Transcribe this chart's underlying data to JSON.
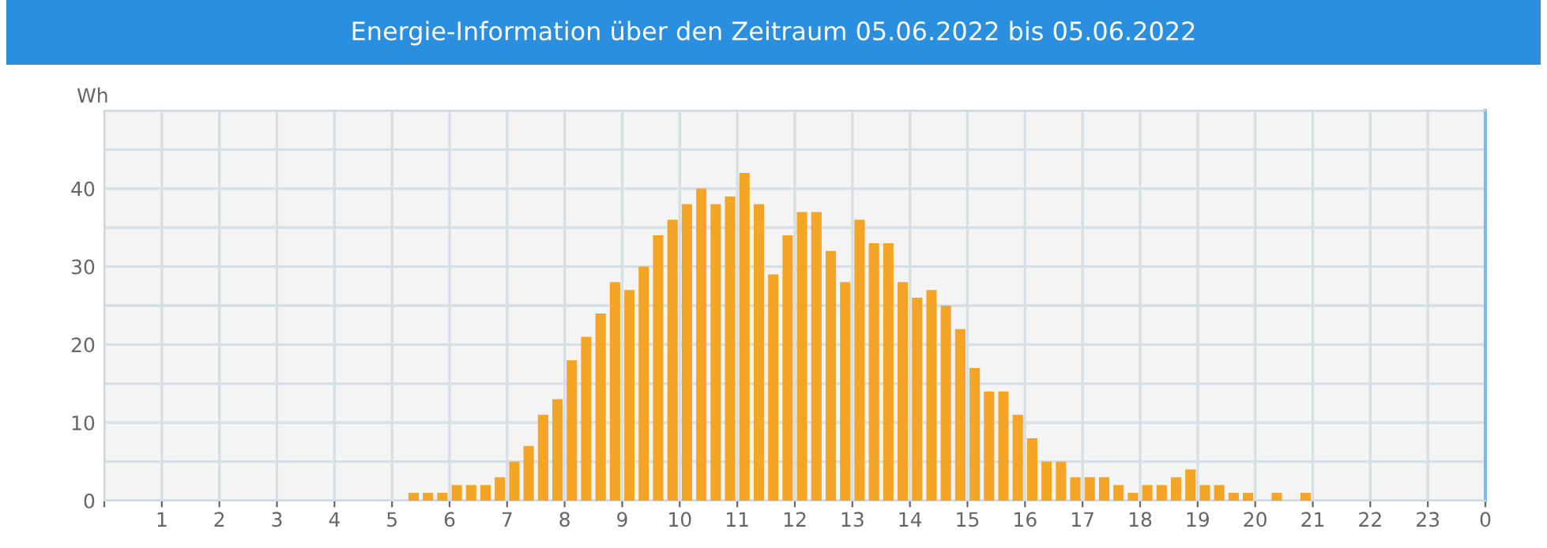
{
  "chart_data": {
    "type": "bar",
    "title": "Energie-Information über den Zeitraum 05.06.2022 bis 05.06.2022",
    "ylabel": "Wh",
    "x": [
      "2022-06-05T05:22:30",
      "2022-06-05T05:37:30",
      "2022-06-05T05:52:30",
      "2022-06-05T06:07:30",
      "2022-06-05T06:22:30",
      "2022-06-05T06:37:30",
      "2022-06-05T06:52:30",
      "2022-06-05T07:07:30",
      "2022-06-05T07:22:30",
      "2022-06-05T07:37:30",
      "2022-06-05T07:52:30",
      "2022-06-05T08:07:30",
      "2022-06-05T08:22:30",
      "2022-06-05T08:37:30",
      "2022-06-05T08:52:30",
      "2022-06-05T09:07:30",
      "2022-06-05T09:22:30",
      "2022-06-05T09:37:30",
      "2022-06-05T09:52:30",
      "2022-06-05T10:07:30",
      "2022-06-05T10:22:30",
      "2022-06-05T10:37:30",
      "2022-06-05T10:52:30",
      "2022-06-05T11:07:30",
      "2022-06-05T11:22:30",
      "2022-06-05T11:37:30",
      "2022-06-05T11:52:30",
      "2022-06-05T12:07:30",
      "2022-06-05T12:22:30",
      "2022-06-05T12:37:30",
      "2022-06-05T12:52:30",
      "2022-06-05T13:07:30",
      "2022-06-05T13:22:30",
      "2022-06-05T13:37:30",
      "2022-06-05T13:52:30",
      "2022-06-05T14:07:30",
      "2022-06-05T14:22:30",
      "2022-06-05T14:37:30",
      "2022-06-05T14:52:30",
      "2022-06-05T15:07:30",
      "2022-06-05T15:22:30",
      "2022-06-05T15:37:30",
      "2022-06-05T15:52:30",
      "2022-06-05T16:07:30",
      "2022-06-05T16:22:30",
      "2022-06-05T16:37:30",
      "2022-06-05T16:52:30",
      "2022-06-05T17:07:30",
      "2022-06-05T17:22:30",
      "2022-06-05T17:37:30",
      "2022-06-05T17:52:30",
      "2022-06-05T18:07:30",
      "2022-06-05T18:22:30",
      "2022-06-05T18:37:30",
      "2022-06-05T18:52:30",
      "2022-06-05T19:07:30",
      "2022-06-05T19:22:30",
      "2022-06-05T19:37:30",
      "2022-06-05T19:52:30",
      "2022-06-05T20:07:30",
      "2022-06-05T20:22:30",
      "2022-06-05T20:37:30",
      "2022-06-05T20:52:30"
    ],
    "values": [
      1,
      1,
      1,
      2,
      2,
      2,
      3,
      5,
      7,
      11,
      13,
      18,
      21,
      24,
      28,
      27,
      30,
      34,
      36,
      38,
      40,
      38,
      39,
      42,
      38,
      29,
      34,
      37,
      37,
      32,
      28,
      36,
      33,
      33,
      28,
      26,
      27,
      25,
      22,
      17,
      14,
      14,
      11,
      8,
      5,
      5,
      3,
      3,
      3,
      2,
      1,
      2,
      2,
      3,
      4,
      2,
      2,
      1,
      1,
      0,
      1,
      0,
      1
    ],
    "color": "#f5a526",
    "xlim": [
      "2022-06-05T00:00",
      "2022-06-06T00:00"
    ],
    "xticks": [
      {
        "value": "2022-06-05T00:00",
        "label": null
      },
      {
        "value": "2022-06-05T01:00",
        "label": "1"
      },
      {
        "value": "2022-06-05T02:00",
        "label": "2"
      },
      {
        "value": "2022-06-05T03:00",
        "label": "3"
      },
      {
        "value": "2022-06-05T04:00",
        "label": "4"
      },
      {
        "value": "2022-06-05T05:00",
        "label": "5"
      },
      {
        "value": "2022-06-05T06:00",
        "label": "6"
      },
      {
        "value": "2022-06-05T07:00",
        "label": "7"
      },
      {
        "value": "2022-06-05T08:00",
        "label": "8"
      },
      {
        "value": "2022-06-05T09:00",
        "label": "9"
      },
      {
        "value": "2022-06-05T10:00",
        "label": "10"
      },
      {
        "value": "2022-06-05T11:00",
        "label": "11"
      },
      {
        "value": "2022-06-05T12:00",
        "label": "12"
      },
      {
        "value": "2022-06-05T13:00",
        "label": "13"
      },
      {
        "value": "2022-06-05T14:00",
        "label": "14"
      },
      {
        "value": "2022-06-05T15:00",
        "label": "15"
      },
      {
        "value": "2022-06-05T16:00",
        "label": "16"
      },
      {
        "value": "2022-06-05T17:00",
        "label": "17"
      },
      {
        "value": "2022-06-05T18:00",
        "label": "18"
      },
      {
        "value": "2022-06-05T19:00",
        "label": "19"
      },
      {
        "value": "2022-06-05T20:00",
        "label": "20"
      },
      {
        "value": "2022-06-05T21:00",
        "label": "21"
      },
      {
        "value": "2022-06-05T22:00",
        "label": "22"
      },
      {
        "value": "2022-06-05T23:00",
        "label": "23"
      },
      {
        "value": "2022-06-06T00:00",
        "label": "0"
      }
    ],
    "ylim": [
      0,
      50
    ],
    "yticks": [
      0,
      {
        "value": 5,
        "label": null
      },
      10,
      {
        "value": 15,
        "label": null
      },
      20,
      {
        "value": 25,
        "label": null
      },
      30,
      {
        "value": 35,
        "label": null
      },
      40,
      {
        "value": 45,
        "label": null
      },
      {
        "value": 50,
        "label": null
      }
    ],
    "grid": true
  }
}
